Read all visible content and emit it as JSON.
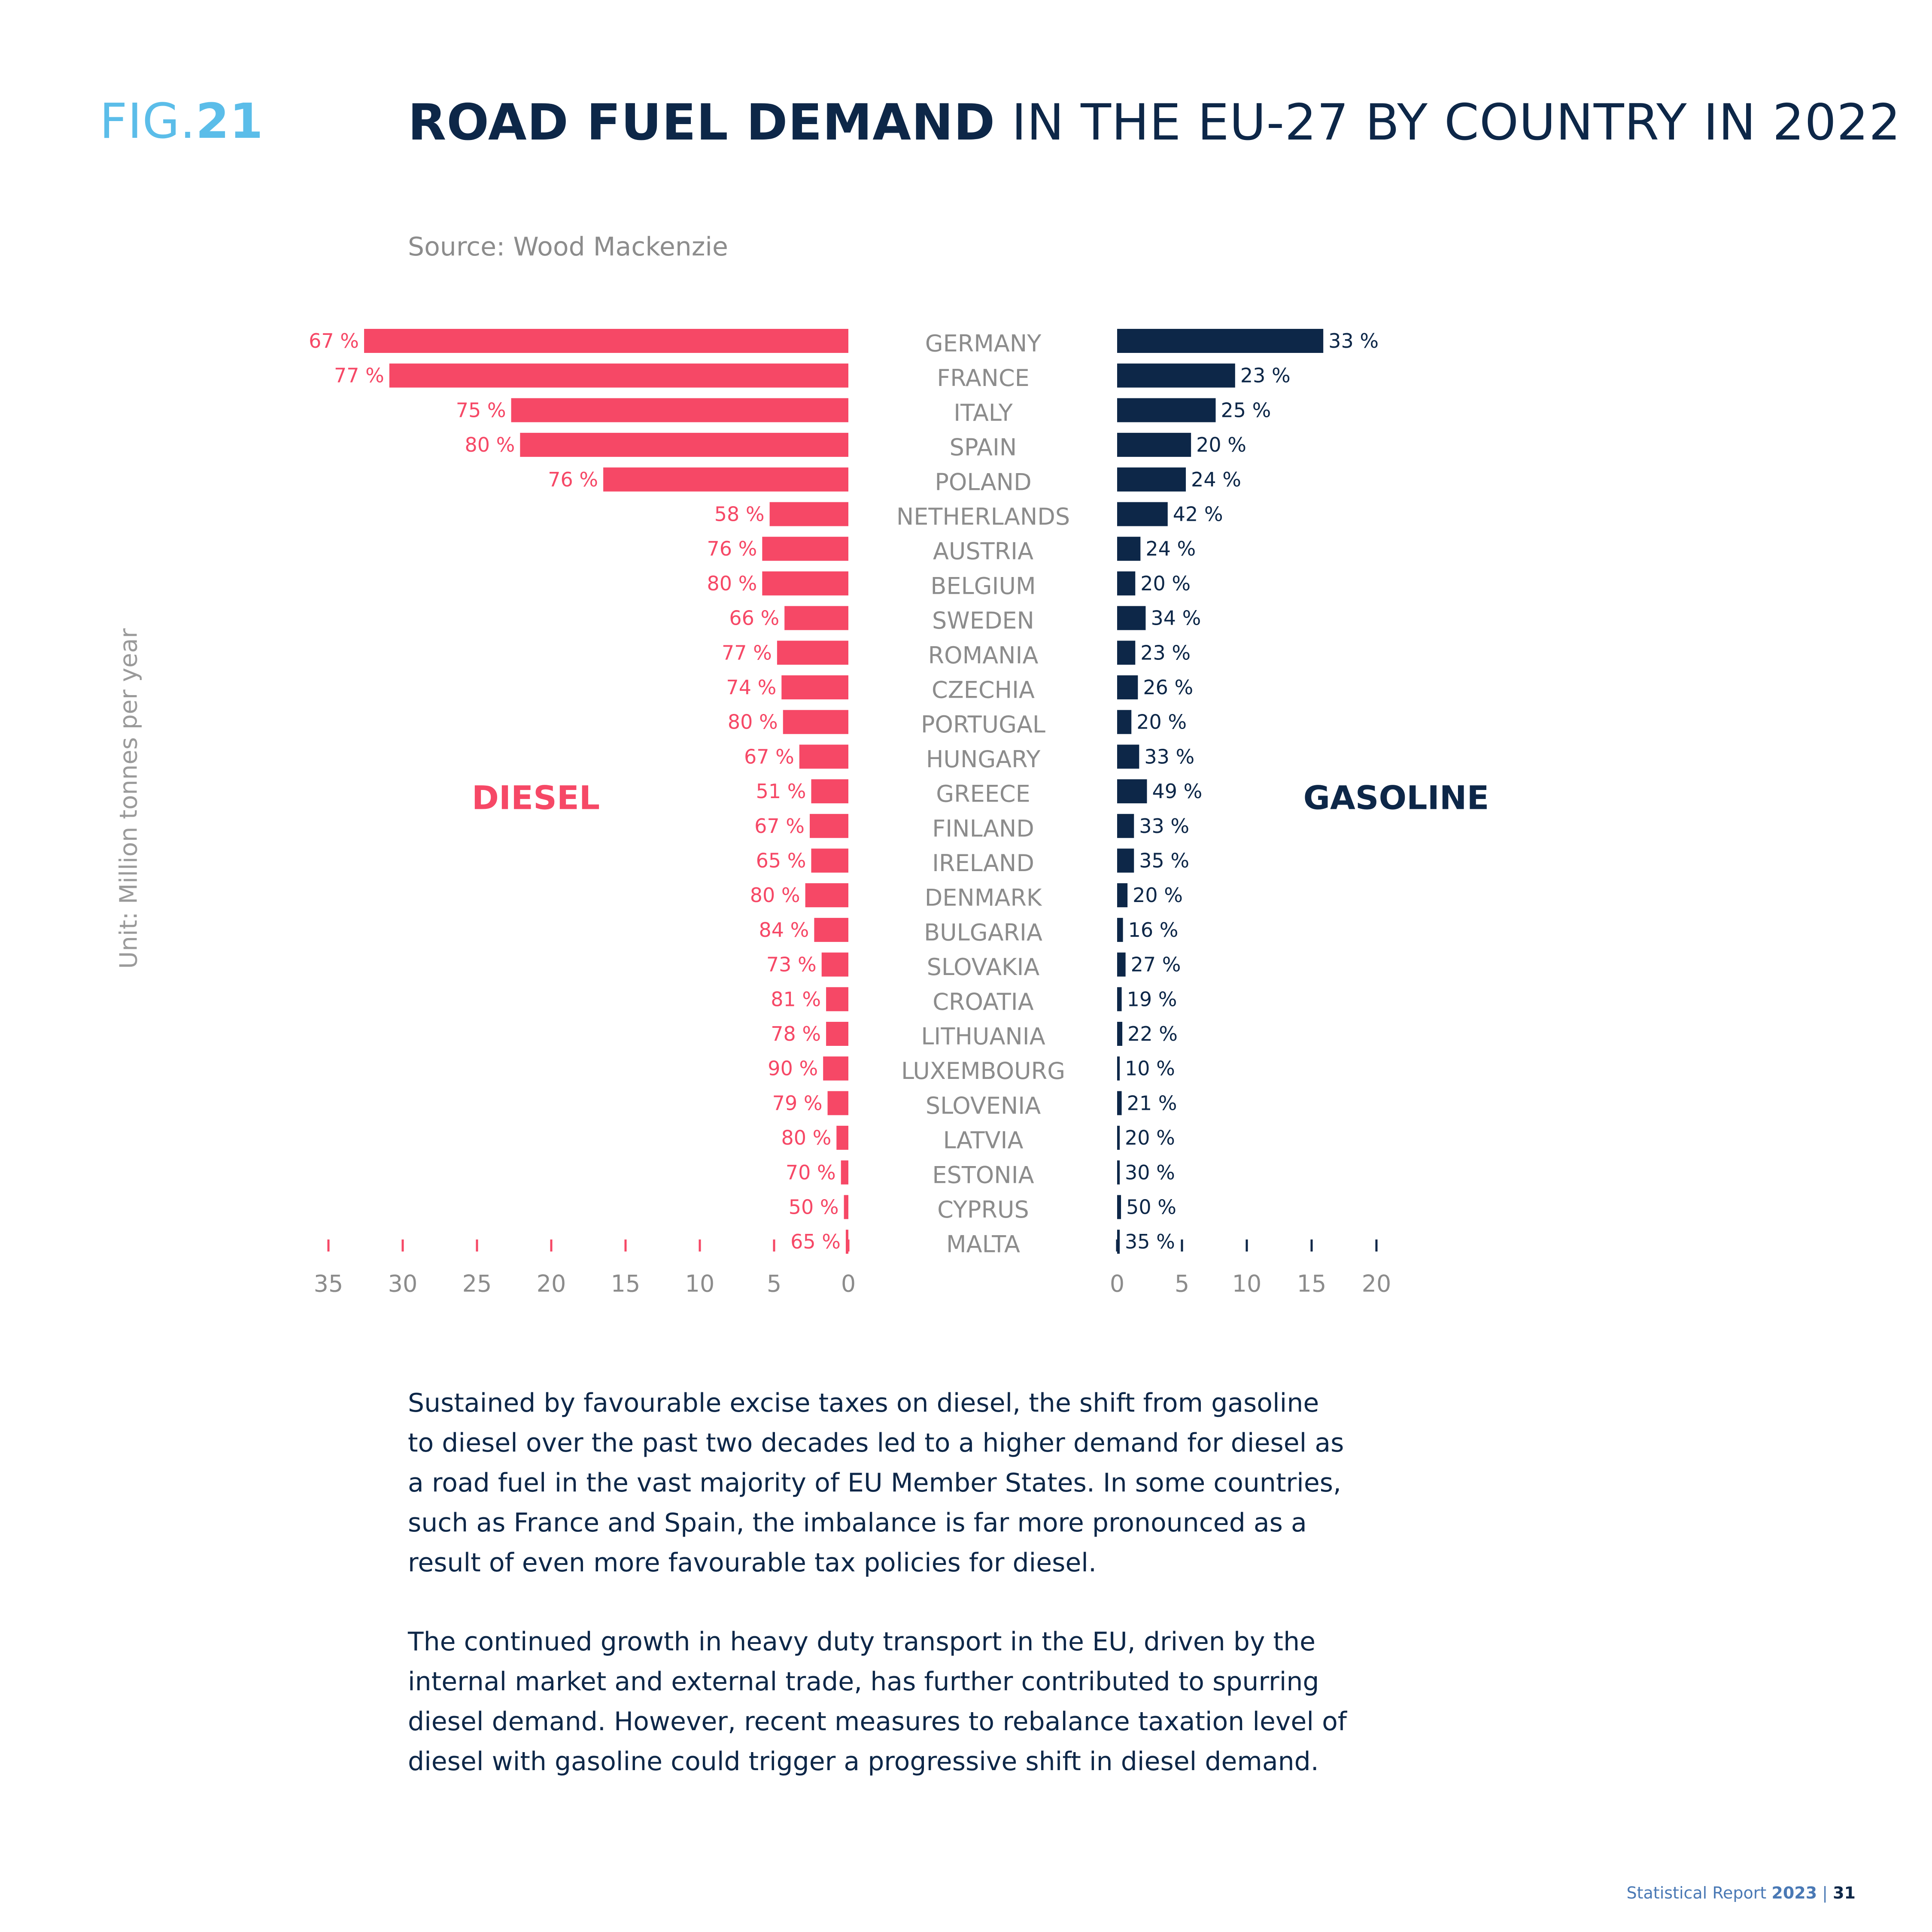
{
  "figure": {
    "prefix": "FIG.",
    "number": "21",
    "title_bold": "ROAD FUEL DEMAND",
    "title_rest": " IN THE EU-27 BY COUNTRY IN 2022",
    "source": "Source: Wood Mackenzie",
    "unit": "Unit: Million tonnes per year"
  },
  "chart_data": {
    "type": "bar",
    "orientation": "horizontal-butterfly",
    "categories": [
      "GERMANY",
      "FRANCE",
      "ITALY",
      "SPAIN",
      "POLAND",
      "NETHERLANDS",
      "AUSTRIA",
      "BELGIUM",
      "SWEDEN",
      "ROMANIA",
      "CZECHIA",
      "PORTUGAL",
      "HUNGARY",
      "GREECE",
      "FINLAND",
      "IRELAND",
      "DENMARK",
      "BULGARIA",
      "SLOVAKIA",
      "CROATIA",
      "LITHUANIA",
      "LUXEMBOURG",
      "SLOVENIA",
      "LATVIA",
      "ESTONIA",
      "CYPRUS",
      "MALTA"
    ],
    "series": [
      {
        "name": "DIESEL",
        "color": "#f64866",
        "values": [
          32.6,
          30.9,
          22.7,
          22.1,
          16.5,
          5.3,
          5.8,
          5.8,
          4.3,
          4.8,
          4.5,
          4.4,
          3.3,
          2.5,
          2.6,
          2.5,
          2.9,
          2.3,
          1.8,
          1.5,
          1.5,
          1.7,
          1.4,
          0.8,
          0.5,
          0.3,
          0.1
        ],
        "labels": [
          "67 %",
          "77 %",
          "75 %",
          "80 %",
          "76 %",
          "58 %",
          "76 %",
          "80 %",
          "66 %",
          "77 %",
          "74 %",
          "80 %",
          "67 %",
          "51 %",
          "67 %",
          "65 %",
          "80 %",
          "84 %",
          "73 %",
          "81 %",
          "78 %",
          "90 %",
          "79 %",
          "80 %",
          "70 %",
          "50 %",
          "65 %"
        ]
      },
      {
        "name": "GASOLINE",
        "color": "#0d2748",
        "values": [
          15.9,
          9.1,
          7.6,
          5.7,
          5.3,
          3.9,
          1.8,
          1.4,
          2.2,
          1.4,
          1.6,
          1.1,
          1.7,
          2.3,
          1.3,
          1.3,
          0.8,
          0.45,
          0.65,
          0.35,
          0.4,
          0.15,
          0.35,
          0.2,
          0.2,
          0.3,
          0.05
        ],
        "labels": [
          "33 %",
          "23 %",
          "25 %",
          "20 %",
          "24 %",
          "42 %",
          "24 %",
          "20 %",
          "34 %",
          "23 %",
          "26 %",
          "20 %",
          "33 %",
          "49 %",
          "33 %",
          "35 %",
          "20 %",
          "16 %",
          "27 %",
          "19 %",
          "22 %",
          "10 %",
          "21 %",
          "20 %",
          "30 %",
          "50 %",
          "35 %"
        ]
      }
    ],
    "diesel_axis": {
      "ticks": [
        "35",
        "30",
        "25",
        "20",
        "15",
        "10",
        "5",
        "0"
      ],
      "xlim": [
        0,
        35
      ],
      "direction": "reversed"
    },
    "gasoline_axis": {
      "ticks": [
        "0",
        "5",
        "10",
        "15",
        "20"
      ],
      "xlim": [
        0,
        20
      ]
    },
    "grid": false,
    "legend": "inline labels"
  },
  "text": {
    "paragraph1": "Sustained by favourable excise taxes on diesel, the shift from gasoline to diesel over the past two decades led to a higher demand for diesel as a road fuel in the vast majority of EU Member States. In some countries, such as France and Spain, the imbalance is far more pronounced as a result of even more favourable tax policies for diesel.",
    "paragraph2": "The continued growth in heavy duty transport in the EU, driven by the internal market and external trade, has further contributed to spurring diesel demand. However, recent measures to rebalance taxation level of diesel with gasoline could trigger a progressive shift in diesel demand."
  },
  "footer": {
    "report": "Statistical Report ",
    "year": "2023",
    "separator": " | ",
    "page": "31"
  }
}
